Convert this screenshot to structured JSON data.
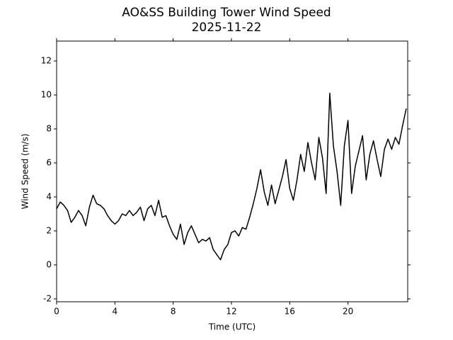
{
  "chart_data": {
    "type": "line",
    "title": "AO&SS Building Tower Wind Speed",
    "subtitle": "2025-11-22",
    "x_label": "Time (UTC)",
    "y_label": "Wind Speed (m/s)",
    "color": "#000000",
    "x": [
      0,
      0.25,
      0.5,
      0.75,
      1,
      1.25,
      1.5,
      1.75,
      2,
      2.25,
      2.5,
      2.75,
      3,
      3.25,
      3.5,
      3.75,
      4,
      4.25,
      4.5,
      4.75,
      5,
      5.25,
      5.5,
      5.75,
      6,
      6.25,
      6.5,
      6.75,
      7,
      7.25,
      7.5,
      7.75,
      8,
      8.25,
      8.5,
      8.75,
      9,
      9.25,
      9.5,
      9.75,
      10,
      10.25,
      10.5,
      10.75,
      11,
      11.25,
      11.5,
      11.75,
      12,
      12.25,
      12.5,
      12.75,
      13,
      13.25,
      13.5,
      13.75,
      14,
      14.25,
      14.5,
      14.75,
      15,
      15.25,
      15.5,
      15.75,
      16,
      16.25,
      16.5,
      16.75,
      17,
      17.25,
      17.5,
      17.75,
      18,
      18.25,
      18.5,
      18.75,
      19,
      19.25,
      19.5,
      19.75,
      20,
      20.25,
      20.5,
      20.75,
      21,
      21.25,
      21.5,
      21.75,
      22,
      22.25,
      22.5,
      22.75,
      23,
      23.25,
      23.5,
      23.75,
      24
    ],
    "values": [
      3.3,
      3.7,
      3.5,
      3.2,
      2.5,
      2.8,
      3.2,
      2.9,
      2.3,
      3.4,
      4.1,
      3.6,
      3.5,
      3.3,
      2.9,
      2.6,
      2.4,
      2.6,
      3.0,
      2.9,
      3.2,
      2.9,
      3.1,
      3.4,
      2.6,
      3.3,
      3.5,
      2.9,
      3.8,
      2.8,
      2.9,
      2.3,
      1.8,
      1.5,
      2.4,
      1.2,
      1.9,
      2.3,
      1.8,
      1.3,
      1.5,
      1.4,
      1.6,
      0.9,
      0.6,
      0.3,
      0.9,
      1.2,
      1.9,
      2.0,
      1.7,
      2.2,
      2.1,
      2.8,
      3.6,
      4.5,
      5.6,
      4.3,
      3.5,
      4.7,
      3.6,
      4.4,
      5.2,
      6.2,
      4.5,
      3.8,
      5.0,
      6.5,
      5.5,
      7.2,
      6.0,
      5.0,
      7.5,
      6.3,
      4.2,
      10.1,
      7.0,
      5.5,
      3.5,
      7.0,
      8.5,
      4.2,
      5.8,
      6.7,
      7.6,
      5.0,
      6.5,
      7.3,
      6.2,
      5.2,
      6.8,
      7.4,
      6.8,
      7.5,
      7.1,
      8.2,
      9.2
    ],
    "xlim": [
      0,
      24.1
    ],
    "ylim": [
      -2.17,
      13.17
    ],
    "xticks": [
      0,
      4,
      8,
      12,
      16,
      20
    ],
    "yticks": [
      -2,
      0,
      2,
      4,
      6,
      8,
      10,
      12
    ]
  }
}
